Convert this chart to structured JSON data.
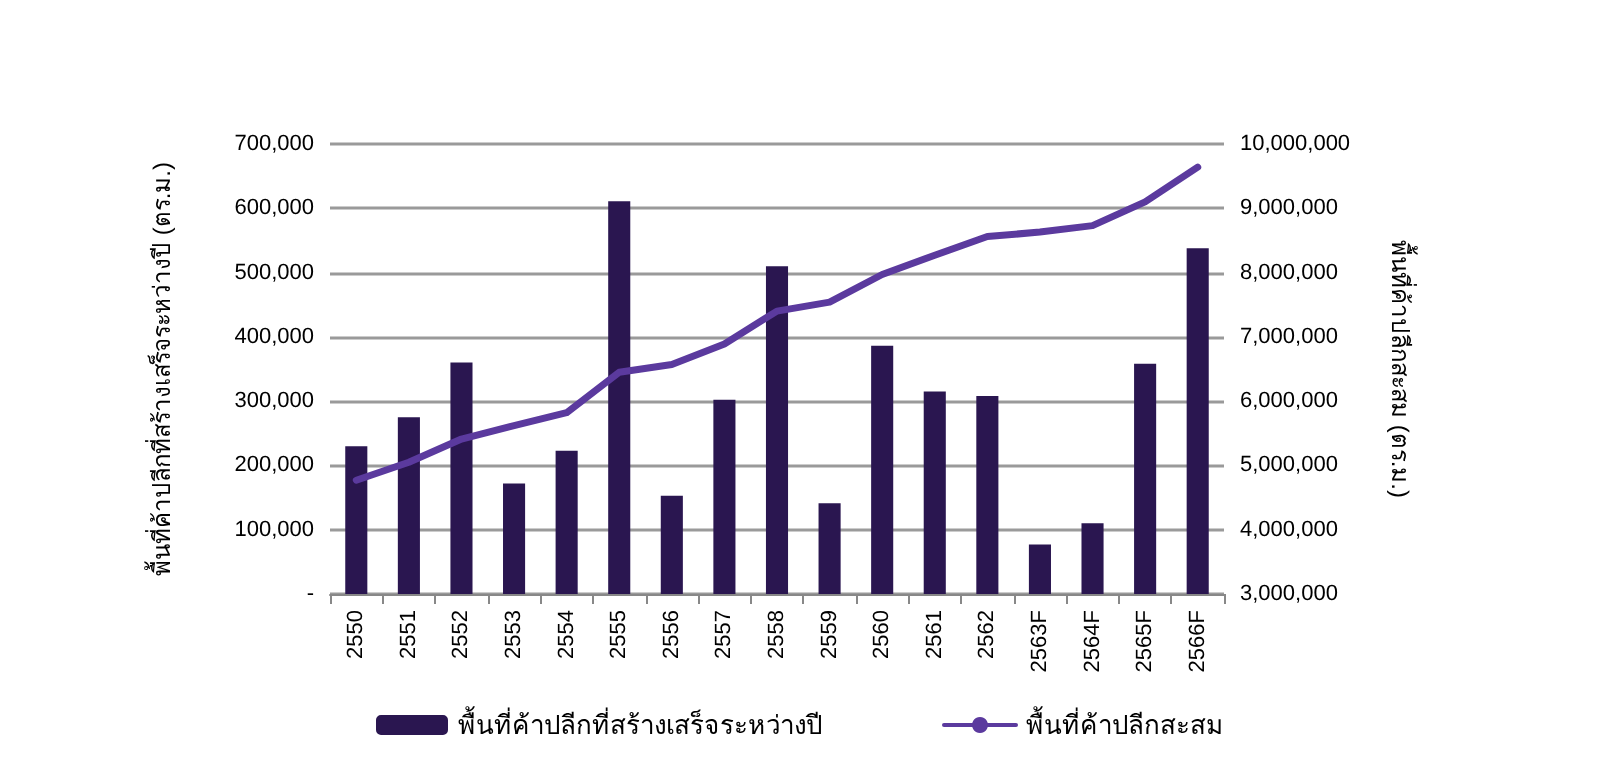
{
  "chart_data": {
    "type": "bar",
    "ylabel": "พื้นที่ค้าปลีกที่สร้างเสร็จระหว่างปี (ตร.ม.)",
    "y2label": "พื้นที่ค้าปลีกสะสม (ตร.ม.)",
    "categories": [
      "2550",
      "2551",
      "2552",
      "2553",
      "2554",
      "2555",
      "2556",
      "2557",
      "2558",
      "2559",
      "2560",
      "2561",
      "2562",
      "2563F",
      "2564F",
      "2565F",
      "2566F"
    ],
    "series": [
      {
        "name": "พื้นที่ค้าปลีกที่สร้างเสร็จระหว่างปี",
        "color": "#2a1650",
        "values": [
          230000,
          275000,
          360000,
          172000,
          223000,
          611000,
          153000,
          302000,
          510000,
          141000,
          386000,
          315000,
          308000,
          77000,
          110000,
          358000,
          538000
        ]
      },
      {
        "name": "พื้นที่ค้าปลีกสะสม",
        "type": "line",
        "axis": "y2",
        "color": "#5b3a9e",
        "values": [
          4770000,
          5050000,
          5410000,
          5620000,
          5820000,
          6450000,
          6570000,
          6890000,
          7400000,
          7540000,
          7970000,
          8270000,
          8560000,
          8630000,
          8730000,
          9100000,
          9640000
        ]
      }
    ],
    "ylim": [
      0,
      700000
    ],
    "yticks": [
      {
        "value": 0,
        "label": "-"
      },
      {
        "value": 100000,
        "label": "100,000"
      },
      {
        "value": 200000,
        "label": "200,000"
      },
      {
        "value": 300000,
        "label": "300,000"
      },
      {
        "value": 400000,
        "label": "400,000"
      },
      {
        "value": 500000,
        "label": "500,000"
      },
      {
        "value": 600000,
        "label": "600,000"
      },
      {
        "value": 700000,
        "label": "700,000"
      }
    ],
    "y2lim": [
      3000000,
      10000000
    ],
    "y2ticks": [
      {
        "value": 3000000,
        "label": "3,000,000"
      },
      {
        "value": 4000000,
        "label": "4,000,000"
      },
      {
        "value": 5000000,
        "label": "5,000,000"
      },
      {
        "value": 6000000,
        "label": "6,000,000"
      },
      {
        "value": 7000000,
        "label": "7,000,000"
      },
      {
        "value": 8000000,
        "label": "8,000,000"
      },
      {
        "value": 9000000,
        "label": "9,000,000"
      },
      {
        "value": 10000000,
        "label": "10,000,000"
      }
    ],
    "grid": "y",
    "legend": "bottom",
    "marker": "none",
    "line_style": "solid"
  }
}
